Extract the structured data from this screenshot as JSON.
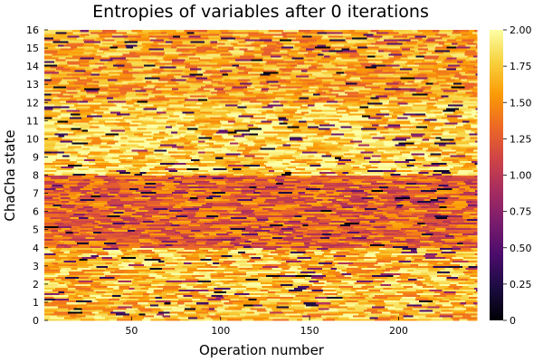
{
  "chart_data": {
    "type": "heatmap",
    "title": "Entropies of variables after 0 iterations",
    "xlabel": "Operation number",
    "ylabel": "ChaCha state",
    "xlim": [
      1,
      244
    ],
    "ylim": [
      0,
      16
    ],
    "xticks": [
      50,
      100,
      150,
      200
    ],
    "yticks": [
      0,
      1,
      2,
      3,
      4,
      5,
      6,
      7,
      8,
      9,
      10,
      11,
      12,
      13,
      14,
      15,
      16
    ],
    "colorbar": {
      "range": [
        0,
        2
      ],
      "ticks": [
        "0",
        "0.25",
        "0.50",
        "0.75",
        "1.00",
        "1.25",
        "1.50",
        "1.75",
        "2.00"
      ],
      "colormap": "inferno",
      "stops": [
        "#000004",
        "#1b0c41",
        "#4a0c6b",
        "#781c6d",
        "#a52c60",
        "#cf4446",
        "#ed6925",
        "#fb9b06",
        "#f7d13d",
        "#fcffa4"
      ]
    },
    "grid": false,
    "legend": "none",
    "summary_rows": [
      {
        "y_range": [
          0,
          4
        ],
        "typical_entropy": 1.7
      },
      {
        "y_range": [
          4,
          8
        ],
        "typical_entropy": 1.3
      },
      {
        "y_range": [
          8,
          12
        ],
        "typical_entropy": 1.8
      },
      {
        "y_range": [
          12,
          16
        ],
        "typical_entropy": 1.6
      }
    ]
  }
}
